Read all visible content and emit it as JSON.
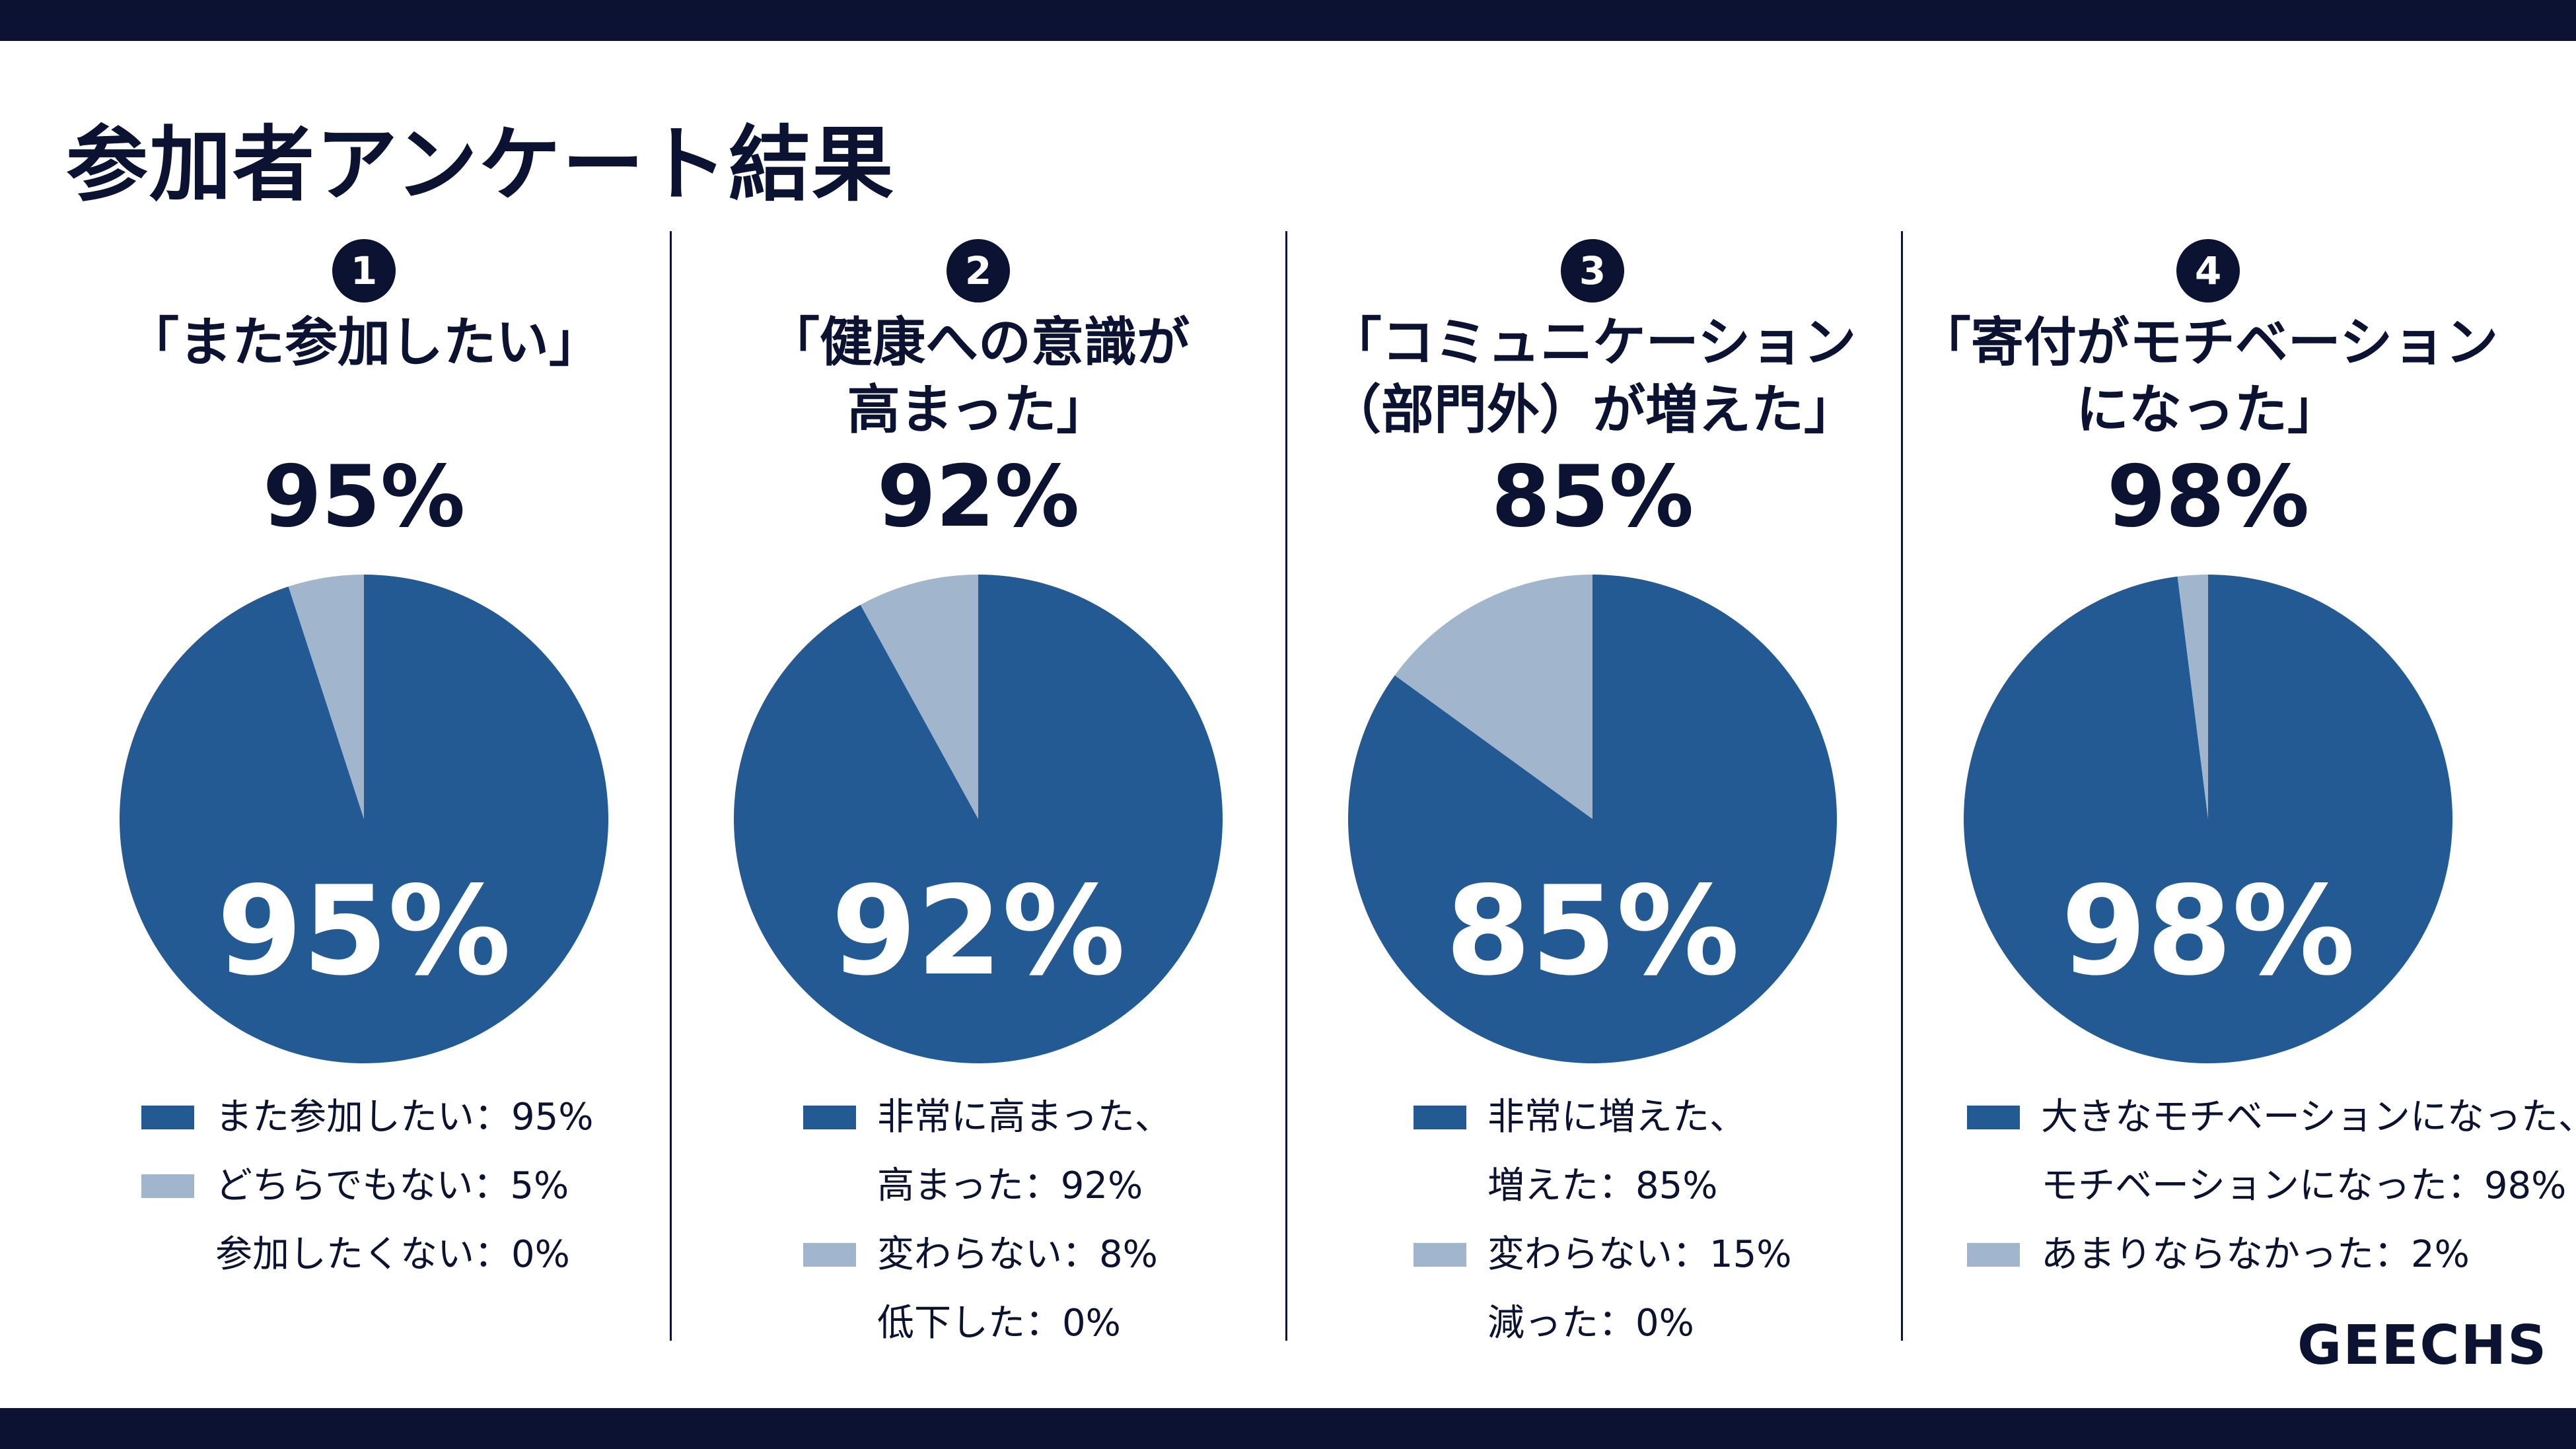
{
  "page": {
    "title": "参加者アンケート結果",
    "brand": "GEECHS"
  },
  "colors": {
    "dark_navy": "#0b1232",
    "primary": "#245a93",
    "secondary": "#a1b6cd",
    "background": "#ffffff"
  },
  "chart_data": [
    {
      "type": "pie",
      "number": "1",
      "question": "「また参加したい」",
      "headline": "95%",
      "center_label": "95%",
      "slices": [
        {
          "label": "また参加したい：95%",
          "value": 95,
          "color": "#245a93"
        },
        {
          "label": "どちらでもない：5%",
          "value": 5,
          "color": "#a1b6cd"
        },
        {
          "label": "参加したくない：0%",
          "value": 0,
          "color": ""
        }
      ]
    },
    {
      "type": "pie",
      "number": "2",
      "question": "「健康への意識が\n高まった」",
      "headline": "92%",
      "center_label": "92%",
      "slices": [
        {
          "label": "非常に高まった、\n高まった：92%",
          "value": 92,
          "color": "#245a93"
        },
        {
          "label": "変わらない：8%",
          "value": 8,
          "color": "#a1b6cd"
        },
        {
          "label": "低下した：0%",
          "value": 0,
          "color": ""
        }
      ]
    },
    {
      "type": "pie",
      "number": "3",
      "question": "「コミュニケーション\n（部門外）が増えた」",
      "headline": "85%",
      "center_label": "85%",
      "slices": [
        {
          "label": "非常に増えた、\n増えた：85%",
          "value": 85,
          "color": "#245a93"
        },
        {
          "label": "変わらない：15%",
          "value": 15,
          "color": "#a1b6cd"
        },
        {
          "label": "減った：0%",
          "value": 0,
          "color": ""
        }
      ]
    },
    {
      "type": "pie",
      "number": "4",
      "question": "「寄付がモチベーション\nになった」",
      "headline": "98%",
      "center_label": "98%",
      "slices": [
        {
          "label": "大きなモチベーションになった、\nモチベーションになった：98%",
          "value": 98,
          "color": "#245a93"
        },
        {
          "label": "あまりならなかった：2%",
          "value": 2,
          "color": "#a1b6cd"
        }
      ]
    }
  ]
}
